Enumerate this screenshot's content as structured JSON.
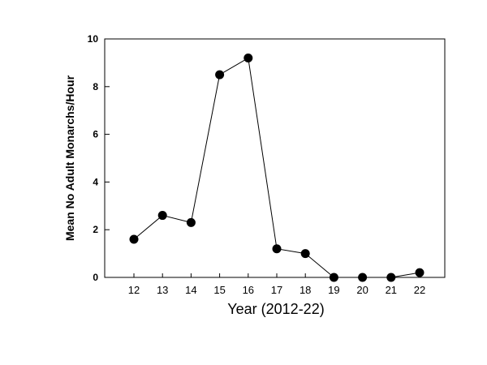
{
  "chart_data": {
    "type": "line",
    "title": "",
    "xlabel": "Year (2012-22)",
    "ylabel": "Mean No Adult Monarchs/Hour",
    "categories": [
      "12",
      "13",
      "14",
      "15",
      "16",
      "17",
      "18",
      "19",
      "20",
      "21",
      "22"
    ],
    "series": [
      {
        "values": [
          1.6,
          2.6,
          2.3,
          8.5,
          9.2,
          1.2,
          1.0,
          0.0,
          0.0,
          0.0,
          0.2
        ]
      }
    ],
    "ylim": [
      0,
      10
    ],
    "yticks": [
      "0",
      "2",
      "4",
      "6",
      "8",
      "10"
    ],
    "grid": false,
    "legend": "none",
    "colors": {
      "line": "#000000",
      "marker": "#000000",
      "axis": "#000000"
    }
  }
}
